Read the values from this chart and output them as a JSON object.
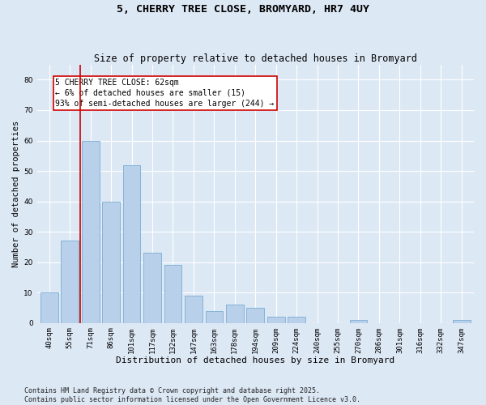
{
  "title": "5, CHERRY TREE CLOSE, BROMYARD, HR7 4UY",
  "subtitle": "Size of property relative to detached houses in Bromyard",
  "xlabel": "Distribution of detached houses by size in Bromyard",
  "ylabel": "Number of detached properties",
  "categories": [
    "40sqm",
    "55sqm",
    "71sqm",
    "86sqm",
    "101sqm",
    "117sqm",
    "132sqm",
    "147sqm",
    "163sqm",
    "178sqm",
    "194sqm",
    "209sqm",
    "224sqm",
    "240sqm",
    "255sqm",
    "270sqm",
    "286sqm",
    "301sqm",
    "316sqm",
    "332sqm",
    "347sqm"
  ],
  "values": [
    10,
    27,
    60,
    40,
    52,
    23,
    19,
    9,
    4,
    6,
    5,
    2,
    2,
    0,
    0,
    1,
    0,
    0,
    0,
    0,
    1
  ],
  "bar_color": "#b8d0ea",
  "bar_edgecolor": "#6aa3cc",
  "bar_width": 0.85,
  "annotation_text": "5 CHERRY TREE CLOSE: 62sqm\n← 6% of detached houses are smaller (15)\n93% of semi-detached houses are larger (244) →",
  "annotation_box_edgecolor": "#cc0000",
  "annotation_box_facecolor": "#ffffff",
  "vline_color": "#cc0000",
  "vline_x": 1.5,
  "ylim": [
    0,
    85
  ],
  "yticks": [
    0,
    10,
    20,
    30,
    40,
    50,
    60,
    70,
    80
  ],
  "bg_color": "#dde8f5",
  "grid_color": "#ffffff",
  "footer_text": "Contains HM Land Registry data © Crown copyright and database right 2025.\nContains public sector information licensed under the Open Government Licence v3.0.",
  "title_fontsize": 9.5,
  "subtitle_fontsize": 8.5,
  "annotation_fontsize": 7,
  "tick_fontsize": 6.5,
  "xlabel_fontsize": 8,
  "ylabel_fontsize": 7.5,
  "footer_fontsize": 6
}
